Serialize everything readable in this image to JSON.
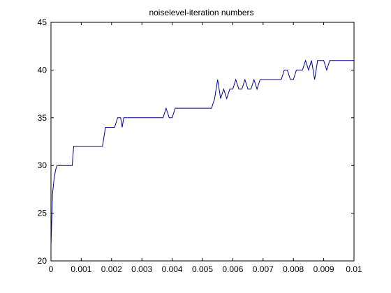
{
  "chart_data": {
    "type": "line",
    "title": "noiselevel-iteration numbers",
    "xlabel": "",
    "ylabel": "",
    "xlim": [
      0,
      0.01
    ],
    "ylim": [
      20,
      45
    ],
    "grid": false,
    "legend": "none",
    "x_ticks": [
      0,
      0.001,
      0.002,
      0.003,
      0.004,
      0.005,
      0.006,
      0.007,
      0.008,
      0.009,
      0.01
    ],
    "x_tick_labels": [
      "0",
      "0.001",
      "0.002",
      "0.003",
      "0.004",
      "0.005",
      "0.006",
      "0.007",
      "0.008",
      "0.009",
      "0.01"
    ],
    "y_ticks": [
      20,
      25,
      30,
      35,
      40,
      45
    ],
    "y_tick_labels": [
      "20",
      "25",
      "30",
      "35",
      "40",
      "45"
    ],
    "line_color": "#00008B",
    "axis_color": "#000000",
    "series": [
      {
        "x": [
          0.0,
          5e-05,
          0.0001,
          0.00015,
          0.0002,
          0.00025,
          0.0003,
          0.00035,
          0.0004,
          0.0005,
          0.0006,
          0.0007,
          0.00075,
          0.0008,
          0.001,
          0.0013,
          0.0016,
          0.0017,
          0.00175,
          0.0018,
          0.002,
          0.00205,
          0.0021,
          0.0022,
          0.0023,
          0.00235,
          0.0024,
          0.0025,
          0.003,
          0.0035,
          0.0037,
          0.0038,
          0.0039,
          0.004,
          0.0041,
          0.0045,
          0.005,
          0.0053,
          0.0054,
          0.0055,
          0.0056,
          0.0057,
          0.0058,
          0.0059,
          0.006,
          0.0061,
          0.0062,
          0.0063,
          0.0064,
          0.0065,
          0.0066,
          0.0067,
          0.0068,
          0.0069,
          0.007,
          0.0075,
          0.0076,
          0.0077,
          0.0078,
          0.0079,
          0.008,
          0.0081,
          0.0082,
          0.0083,
          0.0084,
          0.0085,
          0.0086,
          0.0087,
          0.0088,
          0.0089,
          0.009,
          0.0091,
          0.0092,
          0.0093,
          0.0094,
          0.0095,
          0.01
        ],
        "values": [
          21.5,
          27,
          28.5,
          29.5,
          30,
          30,
          30,
          30,
          30,
          30,
          30,
          30,
          32,
          32,
          32,
          32,
          32,
          32,
          33,
          34,
          34,
          34,
          34,
          35,
          35,
          34,
          35,
          35,
          35,
          35,
          35,
          36,
          35,
          35,
          36,
          36,
          36,
          36,
          37,
          39,
          37,
          38,
          37,
          38,
          38,
          39,
          38,
          38,
          39,
          38,
          38,
          39,
          38,
          39,
          39,
          39,
          39,
          40,
          40,
          39,
          39,
          40,
          40,
          40,
          41,
          40,
          41,
          39,
          41,
          41,
          41,
          40,
          41,
          41,
          41,
          41,
          41
        ]
      }
    ]
  }
}
